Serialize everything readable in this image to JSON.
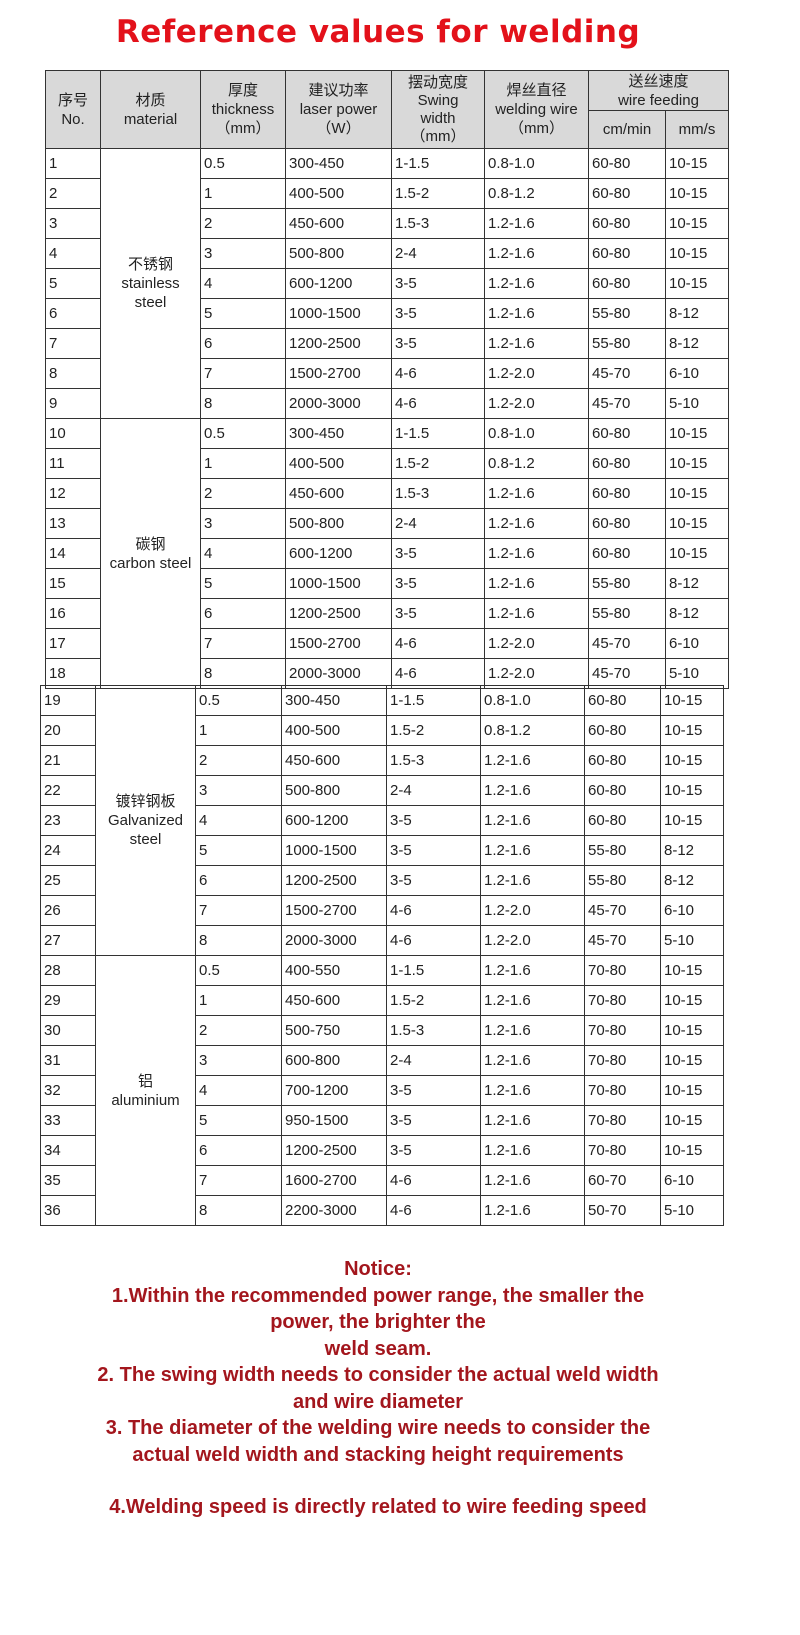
{
  "title": "Reference values for welding",
  "header": {
    "no": [
      "序号",
      "No."
    ],
    "material": [
      "材质",
      "material"
    ],
    "thickness": [
      "厚度",
      "thickness",
      "（mm）"
    ],
    "power": [
      "建议功率",
      "laser power",
      "（W）"
    ],
    "swing": [
      "摆动宽度",
      "Swing",
      "width",
      "（mm）"
    ],
    "wire": [
      "焊丝直径",
      "welding wire",
      "（mm）"
    ],
    "feeding": [
      "送丝速度",
      "wire feeding"
    ],
    "cm_min": "cm/min",
    "mm_s": "mm/s"
  },
  "groups": [
    {
      "material": [
        "不锈钢",
        "stainless",
        "steel"
      ],
      "rows": [
        [
          "1",
          "0.5",
          "300-450",
          "1-1.5",
          "0.8-1.0",
          "60-80",
          "10-15"
        ],
        [
          "2",
          "1",
          "400-500",
          "1.5-2",
          "0.8-1.2",
          "60-80",
          "10-15"
        ],
        [
          "3",
          "2",
          "450-600",
          "1.5-3",
          "1.2-1.6",
          "60-80",
          "10-15"
        ],
        [
          "4",
          "3",
          "500-800",
          "2-4",
          "1.2-1.6",
          "60-80",
          "10-15"
        ],
        [
          "5",
          "4",
          "600-1200",
          "3-5",
          "1.2-1.6",
          "60-80",
          "10-15"
        ],
        [
          "6",
          "5",
          "1000-1500",
          "3-5",
          "1.2-1.6",
          "55-80",
          "8-12"
        ],
        [
          "7",
          "6",
          "1200-2500",
          "3-5",
          "1.2-1.6",
          "55-80",
          "8-12"
        ],
        [
          "8",
          "7",
          "1500-2700",
          "4-6",
          "1.2-2.0",
          "45-70",
          "6-10"
        ],
        [
          "9",
          "8",
          "2000-3000",
          "4-6",
          "1.2-2.0",
          "45-70",
          "5-10"
        ]
      ]
    },
    {
      "material": [
        "碳钢",
        "carbon steel"
      ],
      "rows": [
        [
          "10",
          "0.5",
          "300-450",
          "1-1.5",
          "0.8-1.0",
          "60-80",
          "10-15"
        ],
        [
          "11",
          "1",
          "400-500",
          "1.5-2",
          "0.8-1.2",
          "60-80",
          "10-15"
        ],
        [
          "12",
          "2",
          "450-600",
          "1.5-3",
          "1.2-1.6",
          "60-80",
          "10-15"
        ],
        [
          "13",
          "3",
          "500-800",
          "2-4",
          "1.2-1.6",
          "60-80",
          "10-15"
        ],
        [
          "14",
          "4",
          "600-1200",
          "3-5",
          "1.2-1.6",
          "60-80",
          "10-15"
        ],
        [
          "15",
          "5",
          "1000-1500",
          "3-5",
          "1.2-1.6",
          "55-80",
          "8-12"
        ],
        [
          "16",
          "6",
          "1200-2500",
          "3-5",
          "1.2-1.6",
          "55-80",
          "8-12"
        ],
        [
          "17",
          "7",
          "1500-2700",
          "4-6",
          "1.2-2.0",
          "45-70",
          "6-10"
        ],
        [
          "18",
          "8",
          "2000-3000",
          "4-6",
          "1.2-2.0",
          "45-70",
          "5-10"
        ]
      ]
    },
    {
      "material": [
        "镀锌钢板",
        "Galvanized",
        "steel"
      ],
      "rows": [
        [
          "19",
          "0.5",
          "300-450",
          "1-1.5",
          "0.8-1.0",
          "60-80",
          "10-15"
        ],
        [
          "20",
          "1",
          "400-500",
          "1.5-2",
          "0.8-1.2",
          "60-80",
          "10-15"
        ],
        [
          "21",
          "2",
          "450-600",
          "1.5-3",
          "1.2-1.6",
          "60-80",
          "10-15"
        ],
        [
          "22",
          "3",
          "500-800",
          "2-4",
          "1.2-1.6",
          "60-80",
          "10-15"
        ],
        [
          "23",
          "4",
          "600-1200",
          "3-5",
          "1.2-1.6",
          "60-80",
          "10-15"
        ],
        [
          "24",
          "5",
          "1000-1500",
          "3-5",
          "1.2-1.6",
          "55-80",
          "8-12"
        ],
        [
          "25",
          "6",
          "1200-2500",
          "3-5",
          "1.2-1.6",
          "55-80",
          "8-12"
        ],
        [
          "26",
          "7",
          "1500-2700",
          "4-6",
          "1.2-2.0",
          "45-70",
          "6-10"
        ],
        [
          "27",
          "8",
          "2000-3000",
          "4-6",
          "1.2-2.0",
          "45-70",
          "5-10"
        ]
      ]
    },
    {
      "material": [
        "铝",
        "aluminium"
      ],
      "rows": [
        [
          "28",
          "0.5",
          "400-550",
          "1-1.5",
          "1.2-1.6",
          "70-80",
          "10-15"
        ],
        [
          "29",
          "1",
          "450-600",
          "1.5-2",
          "1.2-1.6",
          "70-80",
          "10-15"
        ],
        [
          "30",
          "2",
          "500-750",
          "1.5-3",
          "1.2-1.6",
          "70-80",
          "10-15"
        ],
        [
          "31",
          "3",
          "600-800",
          "2-4",
          "1.2-1.6",
          "70-80",
          "10-15"
        ],
        [
          "32",
          "4",
          "700-1200",
          "3-5",
          "1.2-1.6",
          "70-80",
          "10-15"
        ],
        [
          "33",
          "5",
          "950-1500",
          "3-5",
          "1.2-1.6",
          "70-80",
          "10-15"
        ],
        [
          "34",
          "6",
          "1200-2500",
          "3-5",
          "1.2-1.6",
          "70-80",
          "10-15"
        ],
        [
          "35",
          "7",
          "1600-2700",
          "4-6",
          "1.2-1.6",
          "60-70",
          "6-10"
        ],
        [
          "36",
          "8",
          "2200-3000",
          "4-6",
          "1.2-1.6",
          "50-70",
          "5-10"
        ]
      ]
    }
  ],
  "notice": {
    "heading": "Notice:",
    "lines": [
      "1.Within the recommended power range, the smaller the",
      "power, the brighter the",
      "weld seam.",
      "2. The swing width needs to consider the actual weld width",
      "and wire diameter",
      "3. The diameter of the welding wire needs to consider the",
      "actual weld width and stacking height requirements",
      "",
      "4.Welding speed is directly related to wire feeding speed"
    ],
    "color": "#a3161d"
  },
  "title_color": "#e3111a"
}
